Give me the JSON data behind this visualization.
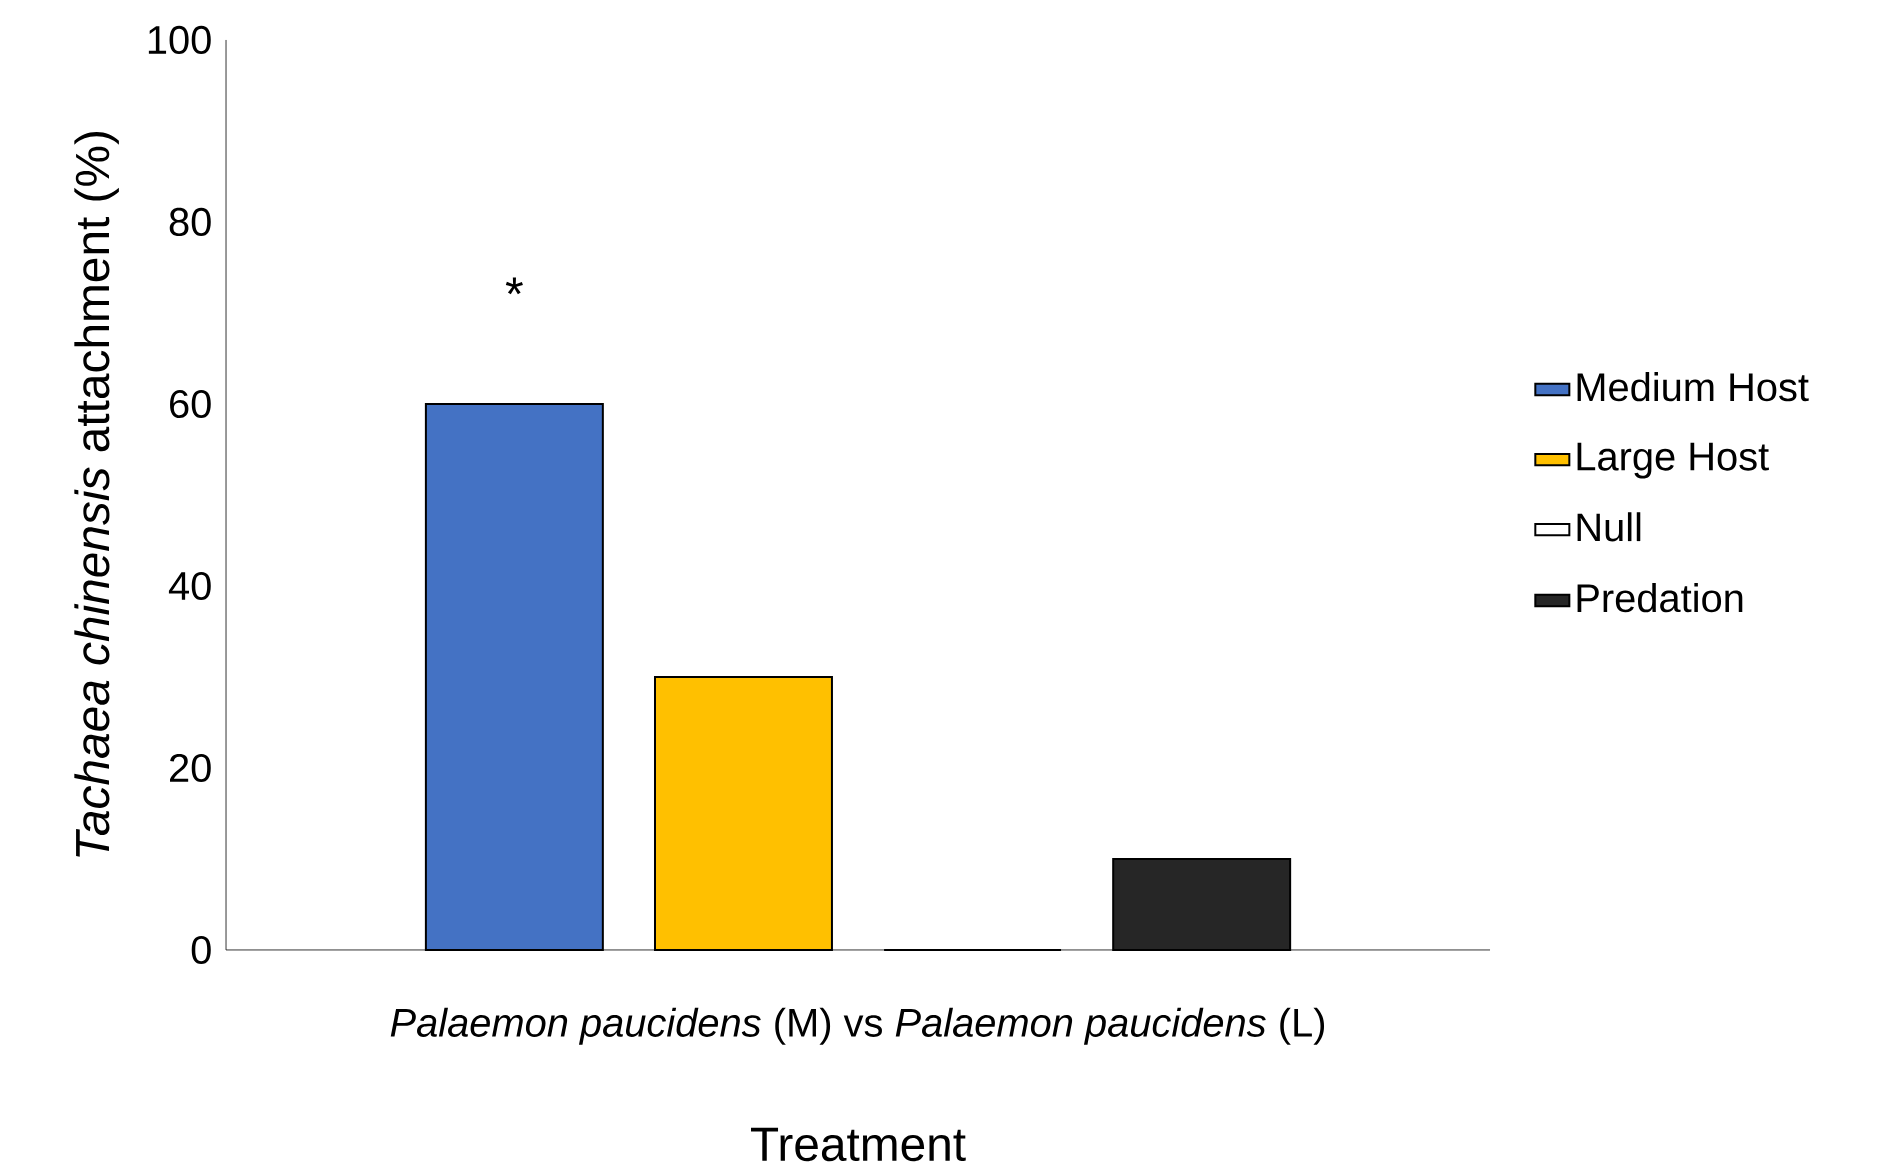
{
  "chart_data": {
    "type": "bar",
    "categories": [
      "*Palaemon paucidens* (M) vs *Palaemon paucidens* (L)"
    ],
    "xlabel": "Treatment",
    "ylabel": "*Tachaea chinensis* attachment (%)",
    "series": [
      {
        "name": "Medium Host",
        "color": "#4472c4",
        "values": [
          60
        ]
      },
      {
        "name": "Large Host",
        "color": "#ffc000",
        "values": [
          30
        ]
      },
      {
        "name": "Null",
        "color": "#ffffff",
        "values": [
          0
        ]
      },
      {
        "name": "Predation",
        "color": "#262626",
        "values": [
          10
        ]
      }
    ],
    "ylim": [
      0,
      100
    ],
    "yticks": [
      0,
      20,
      40,
      60,
      80,
      100
    ],
    "grid": false,
    "legend": "right",
    "annotations": [
      "*"
    ]
  }
}
